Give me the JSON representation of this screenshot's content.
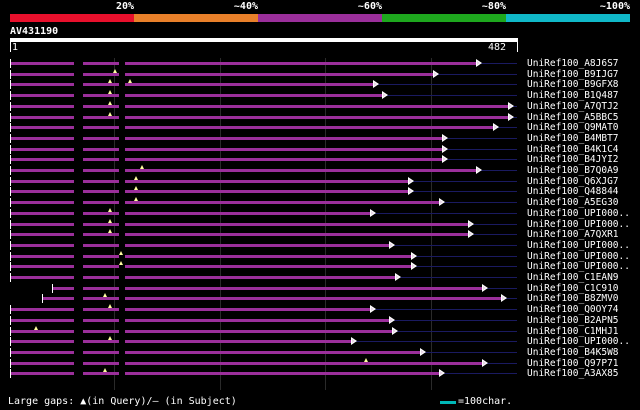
{
  "scale": {
    "labels": [
      "20%",
      "~40%",
      "~60%",
      "~80%",
      "~100%"
    ],
    "colors": [
      "#e8102c",
      "#e8802a",
      "#9b2f9b",
      "#1ea81e",
      "#10b8c8"
    ]
  },
  "query": {
    "id": "AV431190",
    "ruler_start": "1",
    "ruler_end": "482",
    "length": 482
  },
  "hits": [
    {
      "label": "UniRef100_A8J6S7",
      "start": 1,
      "end": 446,
      "ins": []
    },
    {
      "label": "UniRef100_B9IJG7",
      "start": 1,
      "end": 405,
      "ins": [
        101
      ]
    },
    {
      "label": "UniRef100_B9GFX8",
      "start": 1,
      "end": 348,
      "ins": [
        96,
        115
      ]
    },
    {
      "label": "UniRef100_B1Q487",
      "start": 1,
      "end": 357,
      "ins": [
        96
      ]
    },
    {
      "label": "UniRef100_A7QTJ2",
      "start": 1,
      "end": 476,
      "ins": [
        96
      ]
    },
    {
      "label": "UniRef100_A5BBC5",
      "start": 1,
      "end": 476,
      "ins": [
        96
      ]
    },
    {
      "label": "UniRef100_Q9MAT0",
      "start": 1,
      "end": 462,
      "ins": []
    },
    {
      "label": "UniRef100_B4MBT7",
      "start": 1,
      "end": 414,
      "ins": []
    },
    {
      "label": "UniRef100_B4K1C4",
      "start": 1,
      "end": 414,
      "ins": []
    },
    {
      "label": "UniRef100_B4JYI2",
      "start": 1,
      "end": 414,
      "ins": []
    },
    {
      "label": "UniRef100_B7Q0A9",
      "start": 1,
      "end": 446,
      "ins": [
        126
      ]
    },
    {
      "label": "UniRef100_Q6XJG7",
      "start": 1,
      "end": 381,
      "ins": [
        121
      ]
    },
    {
      "label": "UniRef100_Q48844",
      "start": 1,
      "end": 381,
      "ins": [
        121
      ]
    },
    {
      "label": "UniRef100_A5EG30",
      "start": 1,
      "end": 411,
      "ins": [
        121
      ]
    },
    {
      "label": "UniRef100_UPI000..",
      "start": 1,
      "end": 345,
      "ins": [
        96
      ]
    },
    {
      "label": "UniRef100_UPI000..",
      "start": 1,
      "end": 438,
      "ins": [
        96
      ]
    },
    {
      "label": "UniRef100_A7QXR1",
      "start": 1,
      "end": 438,
      "ins": [
        96
      ]
    },
    {
      "label": "UniRef100_UPI000..",
      "start": 1,
      "end": 363,
      "ins": []
    },
    {
      "label": "UniRef100_UPI000..",
      "start": 1,
      "end": 384,
      "ins": [
        106
      ]
    },
    {
      "label": "UniRef100_UPI000..",
      "start": 1,
      "end": 384,
      "ins": [
        106
      ]
    },
    {
      "label": "UniRef100_C1EAN9",
      "start": 1,
      "end": 369,
      "ins": []
    },
    {
      "label": "UniRef100_C1C910",
      "start": 41,
      "end": 452,
      "ins": []
    },
    {
      "label": "UniRef100_B8ZMV0",
      "start": 31,
      "end": 470,
      "ins": [
        91
      ]
    },
    {
      "label": "UniRef100_Q0OY74",
      "start": 1,
      "end": 345,
      "ins": [
        96
      ]
    },
    {
      "label": "UniRef100_B2APN5",
      "start": 1,
      "end": 363,
      "ins": []
    },
    {
      "label": "UniRef100_C1MHJ1",
      "start": 1,
      "end": 366,
      "ins": [
        26
      ]
    },
    {
      "label": "UniRef100_UPI000..",
      "start": 1,
      "end": 327,
      "ins": [
        96
      ]
    },
    {
      "label": "UniRef100_B4K5W8",
      "start": 1,
      "end": 393,
      "ins": []
    },
    {
      "label": "UniRef100_Q97P71",
      "start": 1,
      "end": 452,
      "ins": [
        339
      ]
    },
    {
      "label": "UniRef100_A3AX85",
      "start": 1,
      "end": 411,
      "ins": [
        91
      ]
    }
  ],
  "footer": {
    "gaps_label": "Large gaps: ▲(in Query)/– (in Subject)",
    "legend_label": "=100char."
  }
}
